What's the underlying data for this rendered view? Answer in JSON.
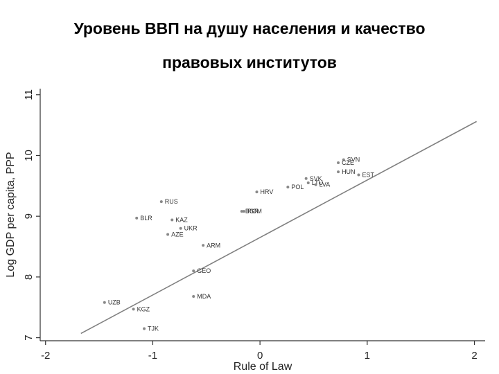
{
  "title_line1": "Уровень ВВП на душу населения и качество",
  "title_line2": "правовых институтов",
  "chart_data": {
    "type": "scatter",
    "xlabel": "Rule of Law",
    "ylabel": "Log GDP per capita, PPP",
    "xlim": [
      -2.05,
      2.1
    ],
    "ylim": [
      6.95,
      11.1
    ],
    "xticks": [
      -2,
      -1,
      0,
      1,
      2
    ],
    "yticks": [
      7,
      8,
      9,
      10,
      11
    ],
    "grid": false,
    "colors": {
      "points": "#888888",
      "fit_line": "#808080",
      "axis": "#333333"
    },
    "points": [
      {
        "label": "SVN",
        "x": 0.78,
        "y": 9.93
      },
      {
        "label": "CZE",
        "x": 0.73,
        "y": 9.88
      },
      {
        "label": "HUN",
        "x": 0.73,
        "y": 9.73
      },
      {
        "label": "EST",
        "x": 0.92,
        "y": 9.68
      },
      {
        "label": "SVK",
        "x": 0.43,
        "y": 9.62
      },
      {
        "label": "LTU",
        "x": 0.45,
        "y": 9.55
      },
      {
        "label": "LVA",
        "x": 0.52,
        "y": 9.52
      },
      {
        "label": "POL",
        "x": 0.26,
        "y": 9.48
      },
      {
        "label": "HRV",
        "x": -0.03,
        "y": 9.4
      },
      {
        "label": "RUS",
        "x": -0.92,
        "y": 9.24
      },
      {
        "label": "BGR",
        "x": -0.17,
        "y": 9.08
      },
      {
        "label": "ROM",
        "x": -0.15,
        "y": 9.08
      },
      {
        "label": "BLR",
        "x": -1.15,
        "y": 8.97
      },
      {
        "label": "KAZ",
        "x": -0.82,
        "y": 8.94
      },
      {
        "label": "UKR",
        "x": -0.74,
        "y": 8.8
      },
      {
        "label": "AZE",
        "x": -0.86,
        "y": 8.7
      },
      {
        "label": "ARM",
        "x": -0.53,
        "y": 8.52
      },
      {
        "label": "GEO",
        "x": -0.62,
        "y": 8.1
      },
      {
        "label": "MDA",
        "x": -0.62,
        "y": 7.68
      },
      {
        "label": "UZB",
        "x": -1.45,
        "y": 7.58
      },
      {
        "label": "KGZ",
        "x": -1.18,
        "y": 7.47
      },
      {
        "label": "TJK",
        "x": -1.08,
        "y": 7.15
      }
    ],
    "fit_line": {
      "x": [
        -1.67,
        2.02
      ],
      "y": [
        7.07,
        10.56
      ]
    }
  }
}
